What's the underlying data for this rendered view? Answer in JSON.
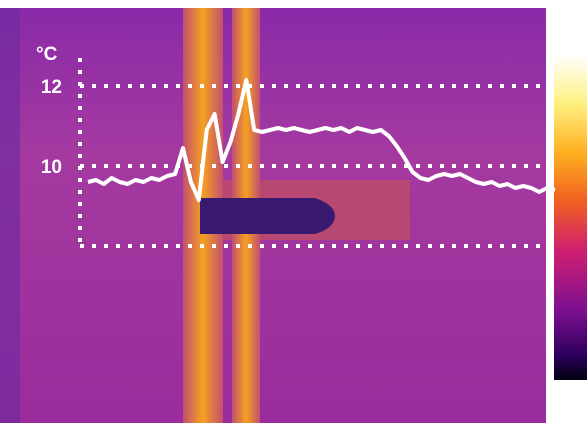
{
  "chart_data": {
    "type": "line",
    "ylabel": "°C",
    "values": [
      9.6,
      9.65,
      9.55,
      9.7,
      9.6,
      9.55,
      9.65,
      9.6,
      9.7,
      9.65,
      9.75,
      9.8,
      10.45,
      9.6,
      9.15,
      10.9,
      11.3,
      10.1,
      10.6,
      11.3,
      12.15,
      10.9,
      10.85,
      10.9,
      10.95,
      10.9,
      10.95,
      10.9,
      10.85,
      10.9,
      10.95,
      10.9,
      10.95,
      10.85,
      10.95,
      10.9,
      10.85,
      10.9,
      10.75,
      10.5,
      10.2,
      9.85,
      9.7,
      9.65,
      9.75,
      9.8,
      9.75,
      9.8,
      9.7,
      9.6,
      9.55,
      9.6,
      9.5,
      9.55,
      9.45,
      9.5,
      9.45,
      9.35,
      9.45,
      9.4
    ],
    "color": "#ffffff",
    "ylim": [
      8,
      12.7
    ],
    "yticks": [
      10,
      12
    ],
    "grid": true
  }
}
